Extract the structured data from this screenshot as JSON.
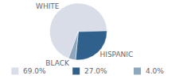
{
  "chart_data": {
    "type": "pie",
    "categories": [
      "WHITE",
      "HISPANIC",
      "BLACK"
    ],
    "values": [
      69,
      27,
      4
    ],
    "value_labels": [
      "69.0%",
      "27.0%",
      "4.0%"
    ],
    "colors": [
      "#d8dde7",
      "#2f618c",
      "#8ea7bd"
    ],
    "legend": "bottom"
  }
}
